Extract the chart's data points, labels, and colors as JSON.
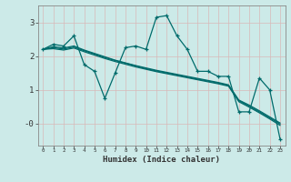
{
  "xlabel": "Humidex (Indice chaleur)",
  "bg_color": "#cceae8",
  "line_color": "#006b6b",
  "x_data": [
    0,
    1,
    2,
    3,
    4,
    5,
    6,
    7,
    8,
    9,
    10,
    11,
    12,
    13,
    14,
    15,
    16,
    17,
    18,
    19,
    20,
    21,
    22,
    23
  ],
  "line1": [
    2.2,
    2.35,
    2.3,
    2.6,
    1.75,
    1.55,
    0.75,
    1.5,
    2.25,
    2.3,
    2.2,
    3.15,
    3.2,
    2.6,
    2.2,
    1.55,
    1.55,
    1.4,
    1.4,
    0.35,
    0.35,
    1.35,
    1.0,
    -0.45
  ],
  "line2": [
    2.2,
    2.28,
    2.24,
    2.3,
    2.18,
    2.08,
    1.98,
    1.88,
    1.8,
    1.72,
    1.65,
    1.58,
    1.52,
    1.46,
    1.4,
    1.34,
    1.28,
    1.22,
    1.15,
    0.7,
    0.55,
    0.38,
    0.2,
    0.02
  ],
  "line3": [
    2.2,
    2.25,
    2.21,
    2.27,
    2.16,
    2.06,
    1.96,
    1.87,
    1.79,
    1.71,
    1.63,
    1.56,
    1.5,
    1.44,
    1.38,
    1.32,
    1.26,
    1.2,
    1.13,
    0.68,
    0.52,
    0.35,
    0.17,
    -0.01
  ],
  "line4": [
    2.2,
    2.22,
    2.18,
    2.24,
    2.13,
    2.03,
    1.93,
    1.84,
    1.76,
    1.68,
    1.61,
    1.54,
    1.48,
    1.42,
    1.36,
    1.3,
    1.24,
    1.18,
    1.11,
    0.65,
    0.49,
    0.32,
    0.14,
    -0.05
  ],
  "ylim": [
    -0.65,
    3.5
  ],
  "xlim": [
    -0.5,
    23.5
  ],
  "yticks": [
    3,
    2,
    1,
    0
  ],
  "ytick_labels": [
    "3",
    "2",
    "1",
    "-0"
  ],
  "grid_color": "#b8d8d5",
  "red_grid_color": "#d8b8b8"
}
